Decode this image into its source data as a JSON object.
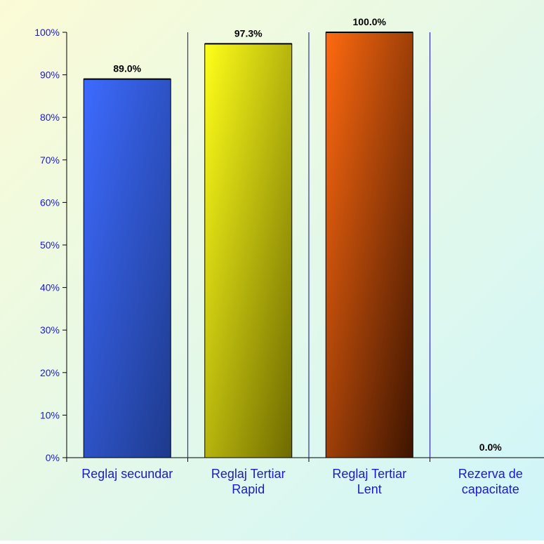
{
  "chart_data": {
    "type": "bar",
    "title": "",
    "xlabel": "",
    "ylabel": "",
    "categories": [
      [
        "Reglaj secundar"
      ],
      [
        "Reglaj Tertiar",
        "Rapid"
      ],
      [
        "Reglaj Tertiar",
        "Lent"
      ],
      [
        "Rezerva  de",
        "capacitate"
      ]
    ],
    "values": [
      89.0,
      97.3,
      100.0,
      0.0
    ],
    "data_labels": [
      "89.0%",
      "97.3%",
      "100.0%",
      "0.0%"
    ],
    "ylim": [
      0,
      100
    ],
    "yticks": [
      "0%",
      "10%",
      "20%",
      "30%",
      "40%",
      "50%",
      "60%",
      "70%",
      "80%",
      "90%",
      "100%"
    ],
    "grid": false,
    "legend": "none",
    "colors": {
      "bars": [
        [
          "#3d6bff",
          "#1e3a8c"
        ],
        [
          "#ffff1a",
          "#6e6a00"
        ],
        [
          "#ff6a10",
          "#3d1400"
        ],
        [
          "#cccccc",
          "#888888"
        ]
      ],
      "axis_label": "#1a1acc",
      "separator": "#3030b0",
      "background_left": "#fbfbd6",
      "background_right": "#cff6fa"
    }
  }
}
